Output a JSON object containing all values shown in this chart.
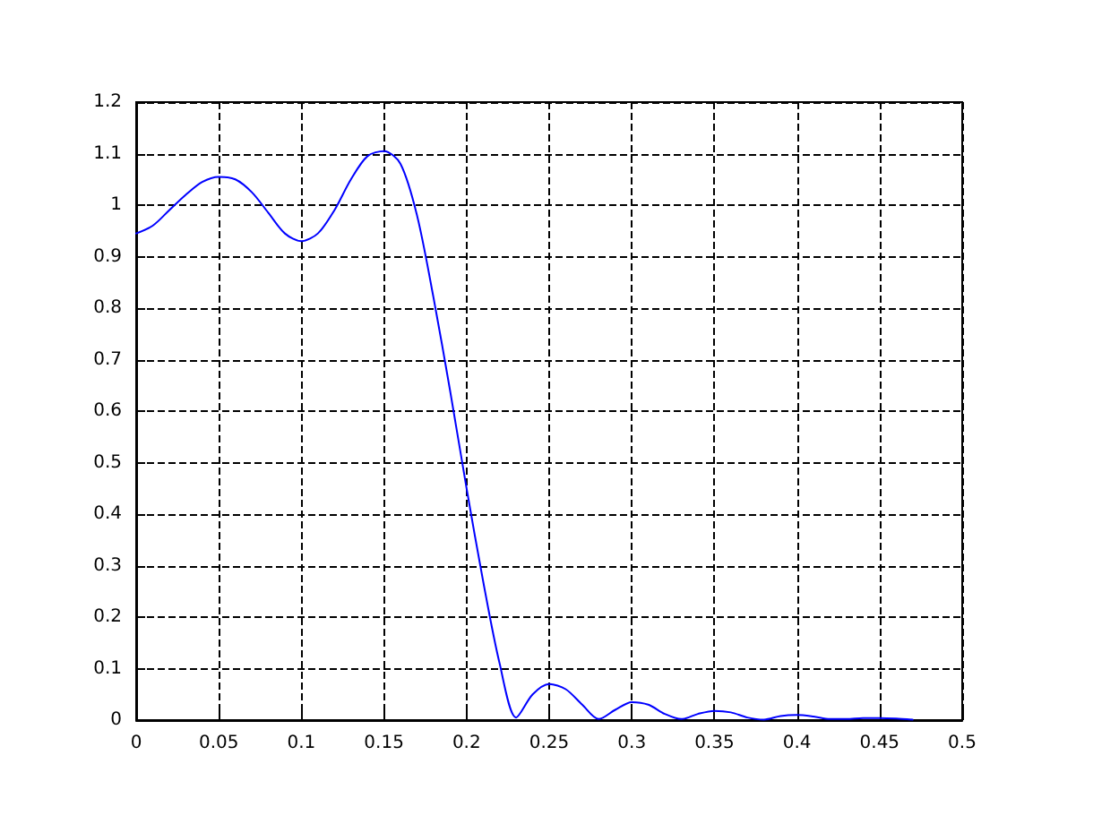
{
  "chart_data": {
    "type": "line",
    "x": [
      0,
      0.01,
      0.02,
      0.03,
      0.04,
      0.05,
      0.06,
      0.07,
      0.08,
      0.09,
      0.1,
      0.11,
      0.12,
      0.13,
      0.14,
      0.15,
      0.16,
      0.17,
      0.18,
      0.19,
      0.2,
      0.21,
      0.22,
      0.23,
      0.24,
      0.25,
      0.26,
      0.27,
      0.28,
      0.29,
      0.3,
      0.31,
      0.32,
      0.33,
      0.34,
      0.35,
      0.36,
      0.37,
      0.38,
      0.39,
      0.4,
      0.41,
      0.42,
      0.43,
      0.44,
      0.45,
      0.46,
      0.47
    ],
    "series": [
      {
        "color": "#0000ff",
        "values": [
          0.945,
          0.96,
          0.99,
          1.02,
          1.045,
          1.055,
          1.05,
          1.025,
          0.985,
          0.945,
          0.93,
          0.945,
          0.99,
          1.05,
          1.095,
          1.105,
          1.08,
          0.98,
          0.82,
          0.64,
          0.45,
          0.27,
          0.11,
          0.005,
          0.05,
          0.07,
          0.06,
          0.03,
          0.002,
          0.02,
          0.035,
          0.03,
          0.012,
          0.002,
          0.012,
          0.018,
          0.015,
          0.005,
          0.001,
          0.008,
          0.01,
          0.007,
          0.002,
          0.002,
          0.004,
          0.004,
          0.003,
          0.001
        ]
      }
    ],
    "xlim": [
      0,
      0.5
    ],
    "xticks": [
      0,
      0.05,
      0.1,
      0.15,
      0.2,
      0.25,
      0.3,
      0.35,
      0.4,
      0.45,
      0.5
    ],
    "ylim": [
      0,
      1.2
    ],
    "yticks": [
      0,
      0.1,
      0.2,
      0.3,
      0.4,
      0.5,
      0.6,
      0.7,
      0.8,
      0.9,
      1,
      1.1,
      1.2
    ],
    "grid": true,
    "marker": "none",
    "line_style": "solid"
  }
}
